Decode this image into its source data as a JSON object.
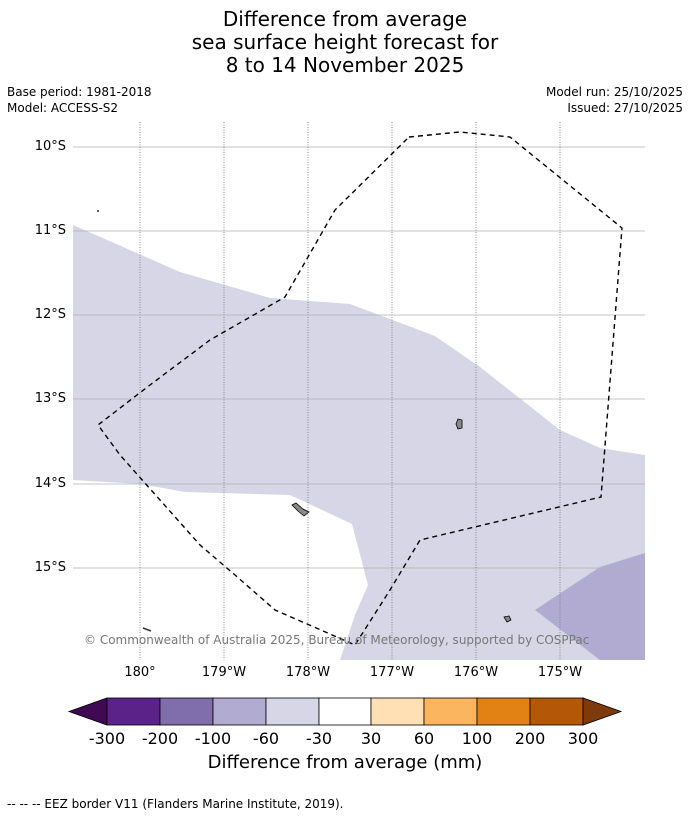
{
  "title": {
    "line1": "Difference from average",
    "line2": "sea surface height forecast for",
    "line3": "8 to 14 November 2025"
  },
  "meta": {
    "base_period": "Base period: 1981-2018",
    "model": "Model: ACCESS-S2",
    "model_run": "Model run: 25/10/2025",
    "issued": "Issued: 27/10/2025"
  },
  "map": {
    "lat_labels": [
      "10°S",
      "11°S",
      "12°S",
      "13°S",
      "14°S",
      "15°S"
    ],
    "lon_labels": [
      "180°",
      "179°W",
      "178°W",
      "177°W",
      "176°W",
      "175°W"
    ],
    "copyright": "© Commonwealth of Australia 2025, Bureau of Meteorology, supported by COSPPac",
    "colors": {
      "band_neg30_neg60": "#d6d6e6",
      "band_neg60_neg100": "#b1abd2",
      "land": "#888888"
    }
  },
  "colorbar": {
    "title": "Difference from average (mm)",
    "tick_labels": [
      "-300",
      "-200",
      "-100",
      "-60",
      "-30",
      "30",
      "60",
      "100",
      "200",
      "300"
    ],
    "colors": [
      "#3f0a53",
      "#5b2389",
      "#7f6eab",
      "#b1abd2",
      "#d6d6e6",
      "#ffffff",
      "#ffdfb3",
      "#fbb55f",
      "#e28215",
      "#b35806",
      "#7e3a0a"
    ]
  },
  "footer": {
    "legend_text": "--  --  -- EEZ border V11 (Flanders Marine Institute, 2019)."
  }
}
